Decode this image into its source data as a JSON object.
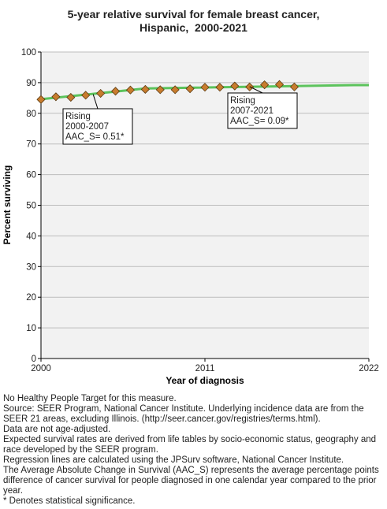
{
  "chart_data": {
    "type": "line",
    "title_lines": [
      "5-year relative survival for female breast cancer,",
      "Hispanic,  2000-2021"
    ],
    "xlabel": "Year of diagnosis",
    "ylabel": "Percent surviving",
    "xlim": [
      2000,
      2022
    ],
    "ylim": [
      0,
      100
    ],
    "x_ticks": [
      "2000",
      "2011",
      "2022"
    ],
    "y_ticks": [
      "0",
      "10",
      "20",
      "30",
      "40",
      "50",
      "60",
      "70",
      "80",
      "90",
      "100"
    ],
    "grid": true,
    "series": [
      {
        "kind": "observed",
        "color": "#c87c2e",
        "x": [
          2000,
          2001,
          2002,
          2003,
          2004,
          2005,
          2006,
          2007,
          2008,
          2009,
          2010,
          2011,
          2012,
          2013,
          2014,
          2015,
          2016,
          2017
        ],
        "y": [
          84.5,
          85.4,
          85.2,
          85.9,
          86.5,
          87.2,
          87.6,
          87.8,
          87.7,
          87.7,
          88.0,
          88.5,
          88.5,
          88.9,
          88.6,
          89.3,
          89.4,
          88.6
        ]
      },
      {
        "kind": "modeled",
        "color": "#5cc35c",
        "x": [
          2000,
          2007,
          2021,
          2022
        ],
        "y": [
          84.6,
          88.1,
          89.2,
          89.2
        ]
      }
    ],
    "annotations": [
      {
        "lines": [
          "Rising",
          "2000-2007",
          "AAC_S=  0.51*"
        ]
      },
      {
        "lines": [
          "Rising",
          "2007-2021",
          "AAC_S=  0.09*"
        ]
      }
    ]
  },
  "footnotes": [
    "No Healthy People Target for this measure.",
    "Source: SEER Program, National Cancer Institute. Underlying incidence data are from the SEER 21 areas, excluding Illinois. (http://seer.cancer.gov/registries/terms.html).",
    "Data are not age-adjusted.",
    "Expected survival rates are derived from life tables by socio-economic status, geography and race developed by the SEER program.",
    "Regression lines are calculated using the JPSurv software, National Cancer Institute.",
    "The Average Absolute Change in Survival (AAC_S) represents the average percentage points difference of cancer survival for people diagnosed in one calendar year compared to the prior year.",
    "* Denotes statistical significance."
  ]
}
